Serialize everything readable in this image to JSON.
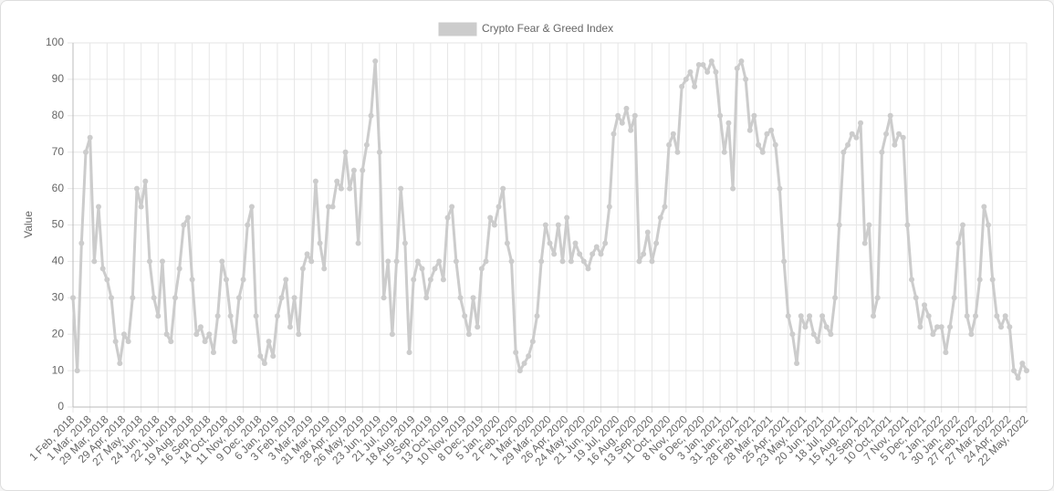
{
  "chart_data": {
    "type": "line",
    "y_label": "Value",
    "legend": "top",
    "grid": true,
    "ylim": [
      0,
      100
    ],
    "yticks": [
      0,
      10,
      20,
      30,
      40,
      50,
      60,
      70,
      80,
      90,
      100
    ],
    "categories": [
      "1 Feb, 2018",
      null,
      null,
      null,
      "1 Mar, 2018",
      null,
      null,
      null,
      "29 Mar, 2018",
      null,
      null,
      null,
      "29 Apr, 2018",
      null,
      null,
      null,
      "27 May, 2018",
      null,
      null,
      null,
      "24 Jun, 2018",
      null,
      null,
      null,
      "22 Jul, 2018",
      null,
      null,
      null,
      "19 Aug, 2018",
      null,
      null,
      null,
      "16 Sep, 2018",
      null,
      null,
      null,
      "14 Oct, 2018",
      null,
      null,
      null,
      "11 Nov, 2018",
      null,
      null,
      null,
      "9 Dec, 2018",
      null,
      null,
      null,
      "6 Jan, 2019",
      null,
      null,
      null,
      "3 Feb, 2019",
      null,
      null,
      null,
      "3 Mar, 2019",
      null,
      null,
      null,
      "31 Mar, 2019",
      null,
      null,
      null,
      "28 Apr, 2019",
      null,
      null,
      null,
      "26 May, 2019",
      null,
      null,
      null,
      "23 Jun, 2019",
      null,
      null,
      null,
      "21 Jul, 2019",
      null,
      null,
      null,
      "18 Aug, 2019",
      null,
      null,
      null,
      "15 Sep, 2019",
      null,
      null,
      null,
      "13 Oct, 2019",
      null,
      null,
      null,
      "10 Nov, 2019",
      null,
      null,
      null,
      "8 Dec, 2019",
      null,
      null,
      null,
      "5 Jan, 2020",
      null,
      null,
      null,
      "2 Feb, 2020",
      null,
      null,
      null,
      "1 Mar, 2020",
      null,
      null,
      null,
      "29 Mar, 2020",
      null,
      null,
      null,
      "26 Apr, 2020",
      null,
      null,
      null,
      "24 May, 2020",
      null,
      null,
      null,
      "21 Jun, 2020",
      null,
      null,
      null,
      "19 Jul, 2020",
      null,
      null,
      null,
      "16 Aug, 2020",
      null,
      null,
      null,
      "13 Sep, 2020",
      null,
      null,
      null,
      "11 Oct, 2020",
      null,
      null,
      null,
      "8 Nov, 2020",
      null,
      null,
      null,
      "6 Dec, 2020",
      null,
      null,
      null,
      "3 Jan, 2021",
      null,
      null,
      null,
      "31 Jan, 2021",
      null,
      null,
      null,
      "28 Feb, 2021",
      null,
      null,
      null,
      "28 Mar, 2021",
      null,
      null,
      null,
      "25 Apr, 2021",
      null,
      null,
      null,
      "23 May, 2021",
      null,
      null,
      null,
      "20 Jun, 2021",
      null,
      null,
      null,
      "18 Jul, 2021",
      null,
      null,
      null,
      "15 Aug, 2021",
      null,
      null,
      null,
      "12 Sep, 2021",
      null,
      null,
      null,
      "10 Oct, 2021",
      null,
      null,
      null,
      "7 Nov, 2021",
      null,
      null,
      null,
      "5 Dec, 2021",
      null,
      null,
      null,
      "2 Jan, 2022",
      null,
      null,
      null,
      "30 Jan, 2022",
      null,
      null,
      null,
      "27 Feb, 2022",
      null,
      null,
      null,
      "27 Mar, 2022",
      null,
      null,
      null,
      "24 Apr, 2022",
      null,
      null,
      null,
      "22 May, 2022"
    ],
    "series": [
      {
        "name": "Crypto Fear & Greed Index",
        "color": "#cccccc",
        "values": [
          30,
          10,
          45,
          70,
          74,
          40,
          55,
          38,
          35,
          30,
          18,
          12,
          20,
          18,
          30,
          60,
          55,
          62,
          40,
          30,
          25,
          40,
          20,
          18,
          30,
          38,
          50,
          52,
          35,
          20,
          22,
          18,
          20,
          15,
          25,
          40,
          35,
          25,
          18,
          30,
          35,
          50,
          55,
          25,
          14,
          12,
          18,
          14,
          25,
          30,
          35,
          22,
          30,
          20,
          38,
          42,
          40,
          62,
          45,
          38,
          55,
          55,
          62,
          60,
          70,
          60,
          65,
          45,
          65,
          72,
          80,
          95,
          70,
          30,
          40,
          20,
          40,
          60,
          45,
          15,
          35,
          40,
          38,
          30,
          35,
          38,
          40,
          35,
          52,
          55,
          40,
          30,
          25,
          20,
          30,
          22,
          38,
          40,
          52,
          50,
          55,
          60,
          45,
          40,
          15,
          10,
          12,
          14,
          18,
          25,
          40,
          50,
          45,
          42,
          50,
          40,
          52,
          40,
          45,
          42,
          40,
          38,
          42,
          44,
          42,
          45,
          55,
          75,
          80,
          78,
          82,
          76,
          80,
          40,
          42,
          48,
          40,
          45,
          52,
          55,
          72,
          75,
          70,
          88,
          90,
          92,
          88,
          94,
          94,
          92,
          95,
          92,
          80,
          70,
          78,
          60,
          93,
          95,
          90,
          76,
          80,
          72,
          70,
          75,
          76,
          72,
          60,
          40,
          25,
          20,
          12,
          25,
          22,
          25,
          20,
          18,
          25,
          22,
          20,
          30,
          50,
          70,
          72,
          75,
          74,
          78,
          45,
          50,
          25,
          30,
          70,
          75,
          80,
          72,
          75,
          74,
          50,
          35,
          30,
          22,
          28,
          25,
          20,
          22,
          22,
          15,
          22,
          30,
          45,
          50,
          25,
          20,
          25,
          35,
          55,
          50,
          35,
          25,
          22,
          25,
          22,
          10,
          8,
          12,
          10
        ]
      }
    ]
  }
}
